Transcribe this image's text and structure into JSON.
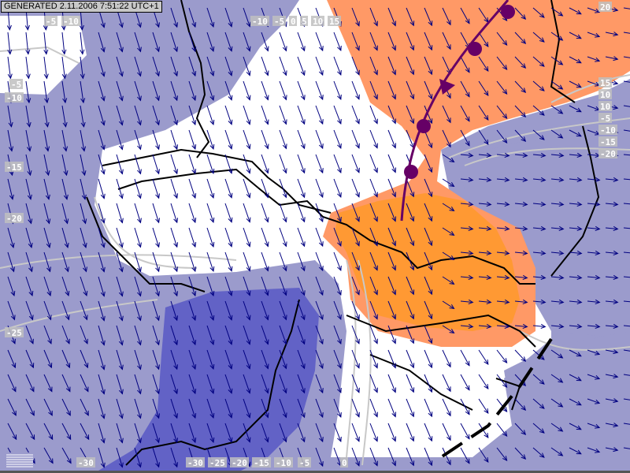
{
  "header": {
    "generated": "GENERATED 2.11.2006 7:51:22 UTC+1"
  },
  "colors": {
    "cold_light": "#9b9bcc",
    "cold_dark": "#6262c6",
    "neutral": "#ffffff",
    "warm_light": "#ff9966",
    "warm": "#ff9933",
    "arrows": "#000080",
    "front": "#660066",
    "borders": "#000000",
    "isolines": "#c8c8c8"
  },
  "isoline_labels": [
    {
      "text": "-5",
      "pos": "top-left-1"
    },
    {
      "text": "-10",
      "pos": "top-left-2"
    },
    {
      "text": "-10",
      "pos": "top-center-1"
    },
    {
      "text": "-5",
      "pos": "top-center-2"
    },
    {
      "text": "0",
      "pos": "top-center-3"
    },
    {
      "text": "5",
      "pos": "top-center-4"
    },
    {
      "text": "10",
      "pos": "top-center-5"
    },
    {
      "text": "15",
      "pos": "top-center-6"
    },
    {
      "text": "20",
      "pos": "top-right"
    },
    {
      "text": "15",
      "pos": "right-1"
    },
    {
      "text": "10",
      "pos": "right-2"
    },
    {
      "text": "10",
      "pos": "right-3"
    },
    {
      "text": "-5",
      "pos": "right-4"
    },
    {
      "text": "-10",
      "pos": "right-5"
    },
    {
      "text": "-15",
      "pos": "right-6"
    },
    {
      "text": "-20",
      "pos": "right-7"
    },
    {
      "text": "-5",
      "pos": "left-1"
    },
    {
      "text": "-10",
      "pos": "left-2"
    },
    {
      "text": "-15",
      "pos": "left-3"
    },
    {
      "text": "-20",
      "pos": "left-4"
    },
    {
      "text": "-25",
      "pos": "left-5"
    },
    {
      "text": "-30",
      "pos": "bottom-1"
    },
    {
      "text": "-30",
      "pos": "bottom-2"
    },
    {
      "text": "-25",
      "pos": "bottom-3"
    },
    {
      "text": "-20",
      "pos": "bottom-4"
    },
    {
      "text": "-15",
      "pos": "bottom-5"
    },
    {
      "text": "-10",
      "pos": "bottom-6"
    },
    {
      "text": "-5",
      "pos": "bottom-7"
    },
    {
      "text": "0",
      "pos": "bottom-8"
    }
  ],
  "legend_icon": "grid-legend-icon"
}
